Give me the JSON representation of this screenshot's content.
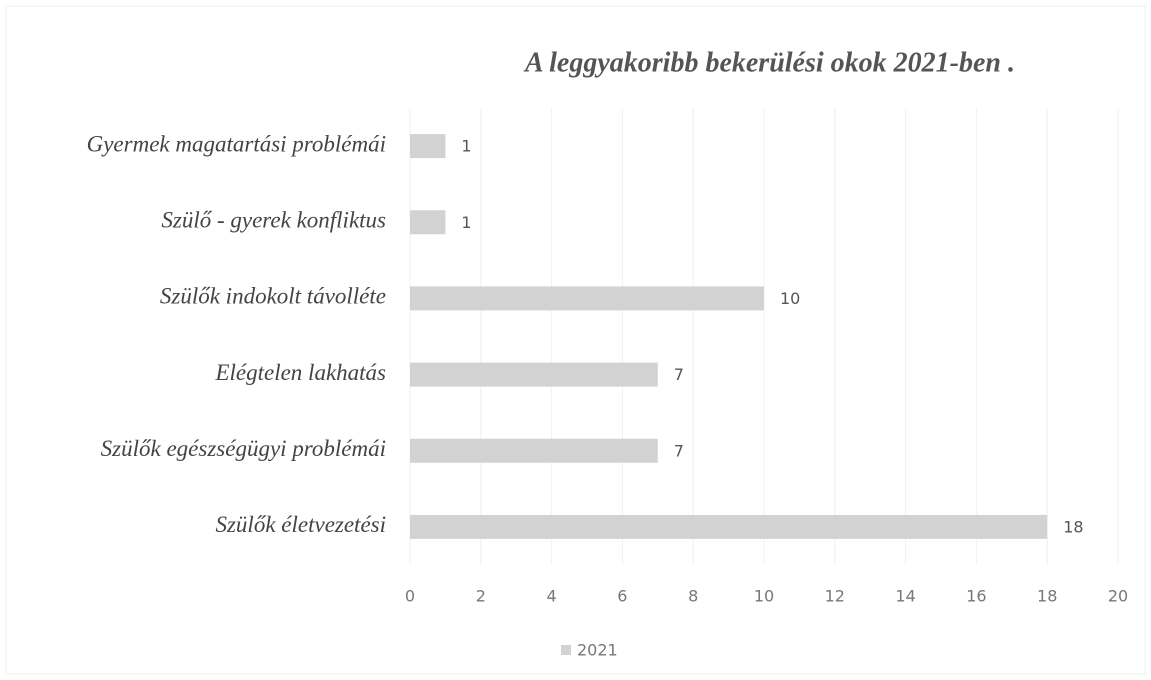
{
  "chart_data": {
    "type": "bar",
    "orientation": "horizontal",
    "title": "A leggyakoribb bekerülési okok 2021-ben .",
    "categories": [
      "Gyermek magatartási problémái",
      "Szülő - gyerek konfliktus",
      "Szülők indokolt távolléte",
      "Elégtelen lakhatás",
      "Szülők egészségügyi problémái",
      "Szülők életvezetési"
    ],
    "series": [
      {
        "name": "2021",
        "color": "#d2d2d2",
        "values": [
          1,
          1,
          10,
          7,
          7,
          18
        ]
      }
    ],
    "xlim": [
      0,
      20
    ],
    "xticks": [
      0,
      2,
      4,
      6,
      8,
      10,
      12,
      14,
      16,
      18,
      20
    ],
    "grid": true,
    "legend": "bottom"
  }
}
